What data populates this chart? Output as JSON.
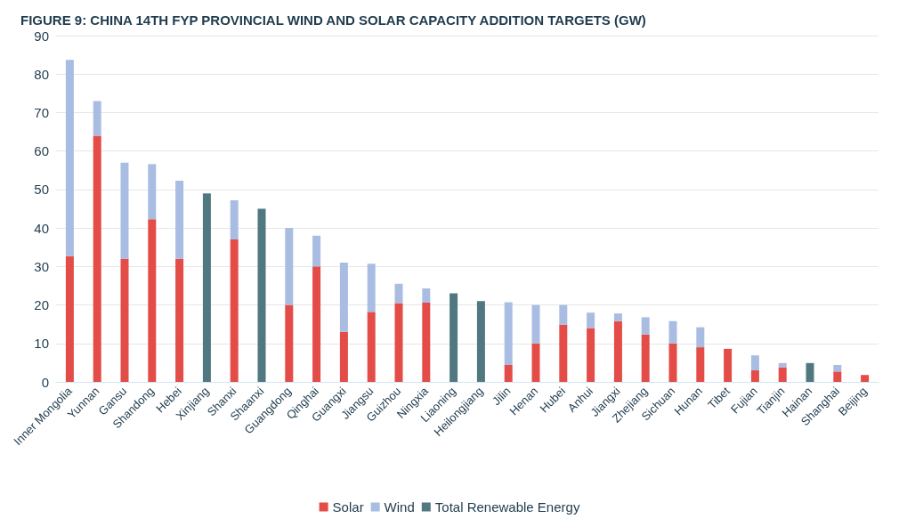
{
  "chart_data": {
    "type": "bar",
    "stacked": true,
    "title": "FIGURE 9: CHINA 14TH FYP PROVINCIAL WIND AND SOLAR CAPACITY ADDITION TARGETS (GW)",
    "categories": [
      "Inner Mongolia",
      "Yunnan",
      "Gansu",
      "Shandong",
      "Hebei",
      "Xinjiang",
      "Shanxi",
      "Shaanxi",
      "Guangdong",
      "Qinghai",
      "Guangxi",
      "Jiangsu",
      "Guizhou",
      "Ningxia",
      "Liaoning",
      "Heilongjiang",
      "Jilin",
      "Henan",
      "Hubei",
      "Anhui",
      "Jiangxi",
      "Zhejiang",
      "Sichuan",
      "Hunan",
      "Tibet",
      "Fujian",
      "Tianjin",
      "Hainan",
      "Shanghai",
      "Beijing"
    ],
    "series": [
      {
        "name": "Solar",
        "color": "#e34c47",
        "values": [
          32.7,
          64,
          32,
          42.3,
          32,
          null,
          37,
          null,
          20,
          30,
          13,
          18.2,
          20.5,
          20.6,
          null,
          null,
          4.4,
          10,
          14.9,
          14,
          15.8,
          12.3,
          10,
          9,
          8.6,
          3,
          3.8,
          null,
          2.7,
          1.8
        ]
      },
      {
        "name": "Wind",
        "color": "#a9bde3",
        "values": [
          51,
          9,
          25,
          14.3,
          20.3,
          null,
          10.2,
          null,
          20,
          8,
          18,
          12.5,
          5,
          3.7,
          null,
          null,
          16.3,
          10,
          5.1,
          4,
          2,
          4.5,
          5.8,
          5.2,
          null,
          3.9,
          1.1,
          null,
          1.7,
          null
        ]
      },
      {
        "name": "Total Renewable Energy",
        "color": "#517880",
        "values": [
          null,
          null,
          null,
          null,
          null,
          49,
          null,
          45,
          null,
          null,
          null,
          null,
          null,
          null,
          23,
          21,
          null,
          null,
          null,
          null,
          null,
          null,
          null,
          null,
          null,
          null,
          null,
          4.9,
          null,
          null
        ]
      }
    ],
    "ylim": [
      0,
      90
    ],
    "yticks": [
      0,
      10,
      20,
      30,
      40,
      50,
      60,
      70,
      80,
      90
    ],
    "grid": "y",
    "legend": "bottom"
  }
}
